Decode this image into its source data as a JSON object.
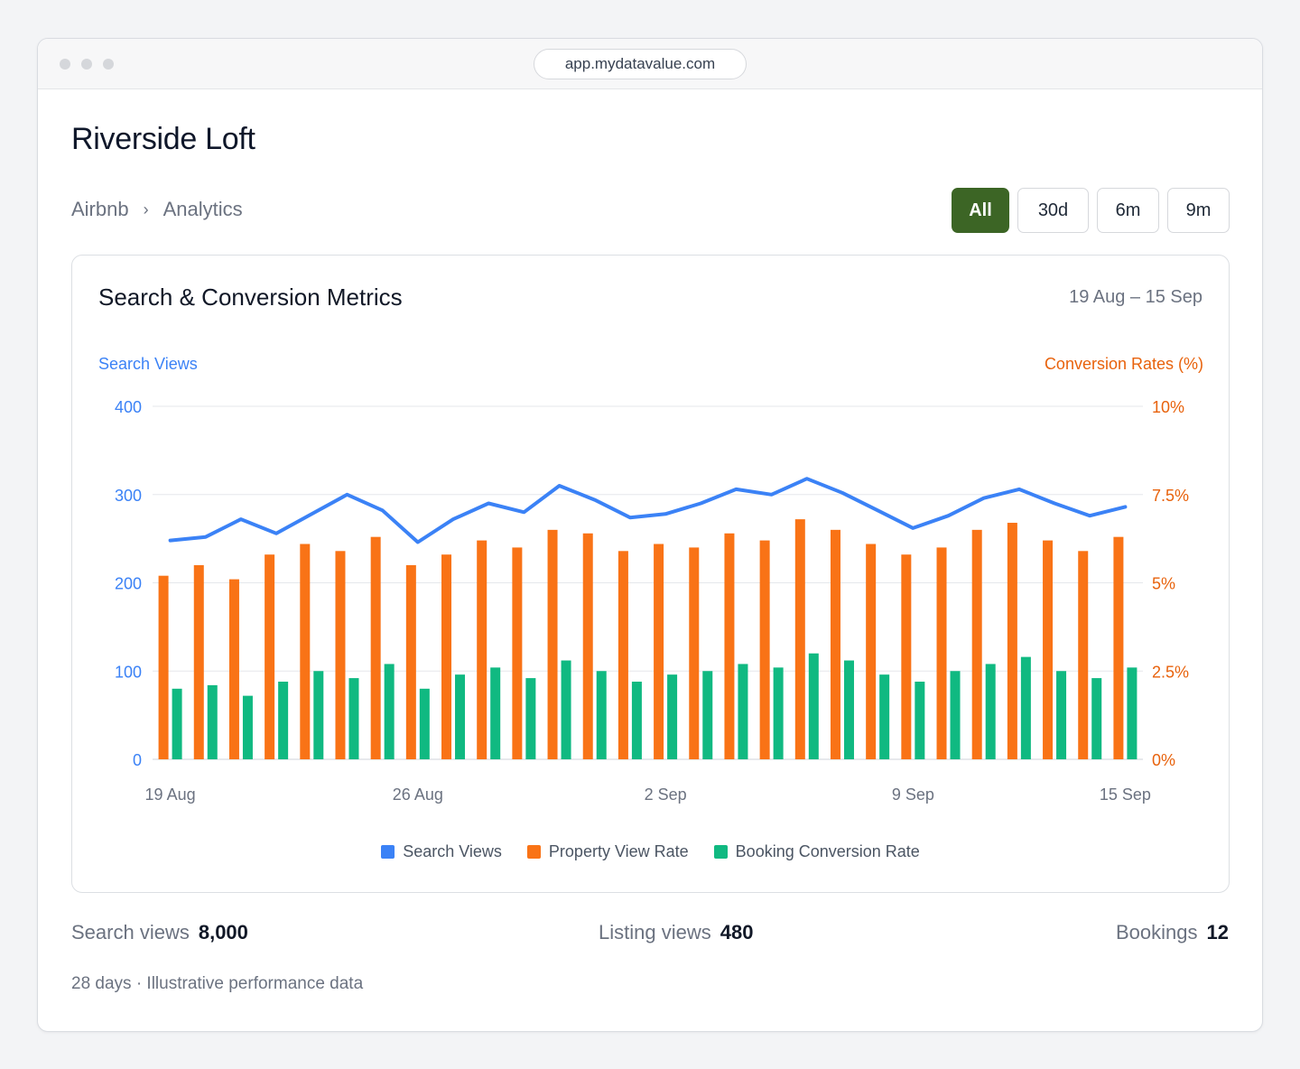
{
  "browser": {
    "url": "app.mydatavalue.com"
  },
  "page": {
    "title": "Riverside Loft"
  },
  "breadcrumb": {
    "items": [
      "Airbnb",
      "Analytics"
    ],
    "separator": "›"
  },
  "range_buttons": [
    {
      "label": "All",
      "active": true
    },
    {
      "label": "30d",
      "active": false
    },
    {
      "label": "6m",
      "active": false
    },
    {
      "label": "9m",
      "active": false
    }
  ],
  "card": {
    "title": "Search & Conversion Metrics",
    "date_range": "19 Aug – 15 Sep"
  },
  "chart_data": {
    "type": "bar",
    "title": "Search & Conversion Metrics",
    "left_axis": {
      "label": "Search Views",
      "ticks": [
        "0",
        "100",
        "200",
        "300",
        "400"
      ],
      "range": [
        0,
        400
      ],
      "color": "#3b82f6"
    },
    "right_axis": {
      "label": "Conversion Rates (%)",
      "ticks": [
        "0%",
        "2.5%",
        "5%",
        "7.5%",
        "10%"
      ],
      "range": [
        0,
        10
      ],
      "color": "#e8620c"
    },
    "x_tick_labels": [
      "19 Aug",
      "26 Aug",
      "2 Sep",
      "9 Sep",
      "15 Sep"
    ],
    "x": [
      "19 Aug",
      "20 Aug",
      "21 Aug",
      "22 Aug",
      "23 Aug",
      "24 Aug",
      "25 Aug",
      "26 Aug",
      "27 Aug",
      "28 Aug",
      "29 Aug",
      "30 Aug",
      "31 Aug",
      "1 Sep",
      "2 Sep",
      "3 Sep",
      "4 Sep",
      "5 Sep",
      "6 Sep",
      "7 Sep",
      "8 Sep",
      "9 Sep",
      "10 Sep",
      "11 Sep",
      "12 Sep",
      "13 Sep",
      "14 Sep",
      "15 Sep"
    ],
    "grid": true,
    "legend_position": "bottom",
    "series": [
      {
        "name": "Search Views",
        "type": "line",
        "axis": "left",
        "color": "#3b82f6",
        "values": [
          248,
          252,
          272,
          256,
          278,
          300,
          282,
          246,
          272,
          290,
          280,
          310,
          294,
          274,
          278,
          290,
          306,
          300,
          318,
          302,
          282,
          262,
          276,
          296,
          306,
          290,
          276,
          286
        ]
      },
      {
        "name": "Property View Rate",
        "type": "bar",
        "axis": "right",
        "color": "#f97316",
        "values": [
          5.2,
          5.5,
          5.1,
          5.8,
          6.1,
          5.9,
          6.3,
          5.5,
          5.8,
          6.2,
          6.0,
          6.5,
          6.4,
          5.9,
          6.1,
          6.0,
          6.4,
          6.2,
          6.8,
          6.5,
          6.1,
          5.8,
          6.0,
          6.5,
          6.7,
          6.2,
          5.9,
          6.3
        ]
      },
      {
        "name": "Booking Conversion Rate",
        "type": "bar",
        "axis": "right",
        "color": "#10b981",
        "values": [
          2.0,
          2.1,
          1.8,
          2.2,
          2.5,
          2.3,
          2.7,
          2.0,
          2.4,
          2.6,
          2.3,
          2.8,
          2.5,
          2.2,
          2.4,
          2.5,
          2.7,
          2.6,
          3.0,
          2.8,
          2.4,
          2.2,
          2.5,
          2.7,
          2.9,
          2.5,
          2.3,
          2.6
        ]
      }
    ]
  },
  "stats": [
    {
      "label": "Search views",
      "value": "8,000"
    },
    {
      "label": "Listing views",
      "value": "480"
    },
    {
      "label": "Bookings",
      "value": "12"
    }
  ],
  "footnote": "28 days · Illustrative performance data"
}
